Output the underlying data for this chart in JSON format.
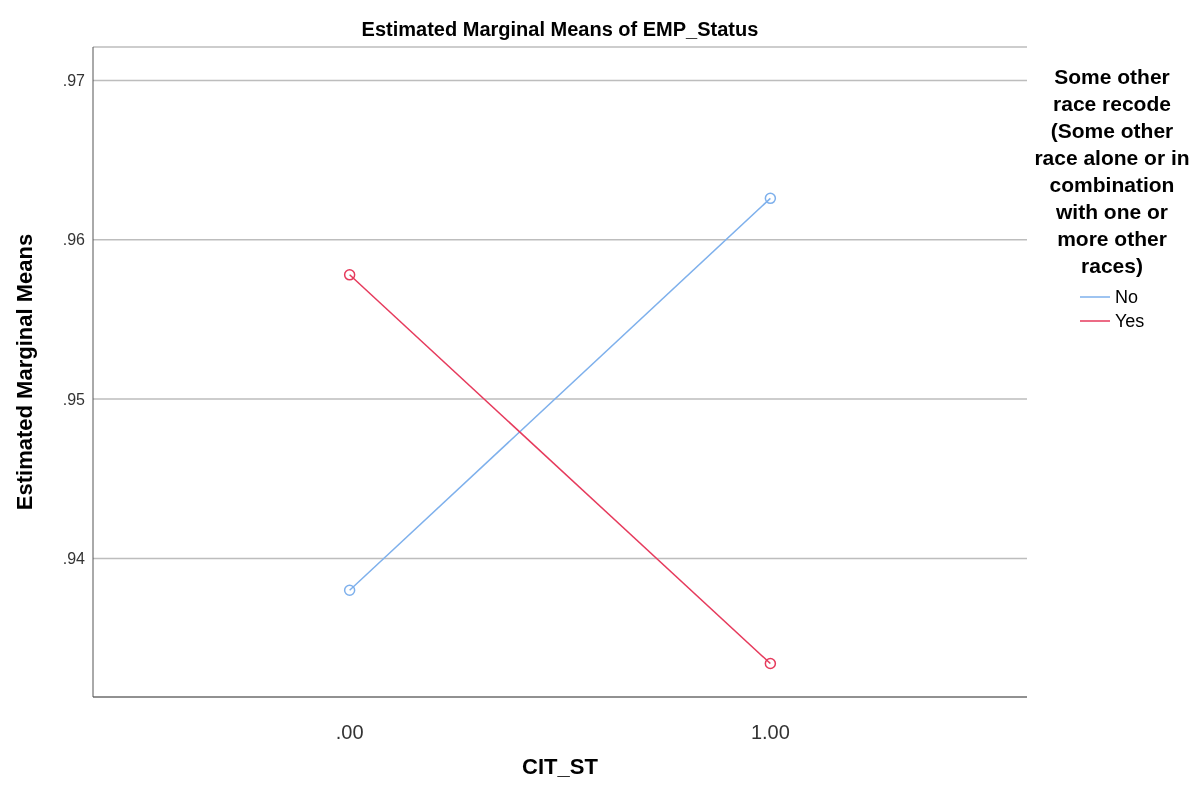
{
  "chart_data": {
    "type": "line",
    "title": "Estimated Marginal Means of EMP_Status",
    "xlabel": "CIT_ST",
    "ylabel": "Estimated Marginal Means",
    "legend_title": "Some other race recode (Some other race alone or in combination with one or more other races)",
    "categories": [
      ".00",
      "1.00"
    ],
    "series": [
      {
        "name": "No",
        "color": "#7eb0ec",
        "values": [
          0.938,
          0.9626
        ]
      },
      {
        "name": "Yes",
        "color": "#e63a5c",
        "values": [
          0.9578,
          0.9334
        ]
      }
    ],
    "ylim": [
      0.9313,
      0.9721
    ],
    "yticks": [
      {
        "value": 0.94,
        "label": ".94"
      },
      {
        "value": 0.95,
        "label": ".95"
      },
      {
        "value": 0.96,
        "label": ".96"
      },
      {
        "value": 0.97,
        "label": ".97"
      }
    ],
    "grid": "y",
    "legend": "right",
    "marker": "circle",
    "line_style": "solid"
  }
}
